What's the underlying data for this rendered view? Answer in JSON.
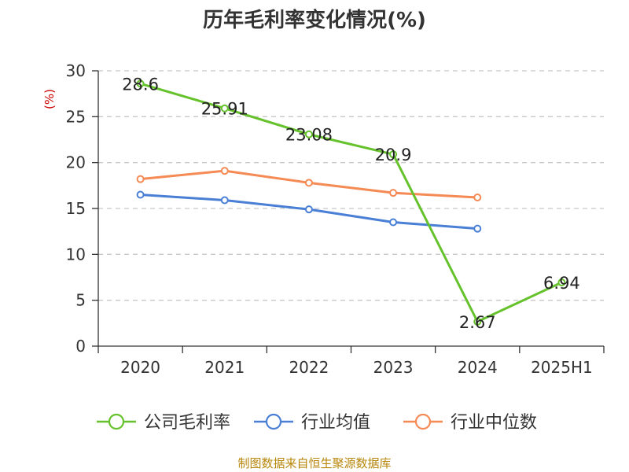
{
  "chart_data": {
    "type": "line",
    "title": "历年毛利率变化情况(%)",
    "ylabel": "(%)",
    "ylim": [
      0,
      30
    ],
    "yticks": [
      0,
      5,
      10,
      15,
      20,
      25,
      30
    ],
    "categories": [
      "2020",
      "2021",
      "2022",
      "2023",
      "2024",
      "2025H1"
    ],
    "grid": true,
    "legend_position": "bottom",
    "series": [
      {
        "name": "公司毛利率",
        "color": "#66c22c",
        "values": [
          28.6,
          25.91,
          23.08,
          20.9,
          2.67,
          6.94
        ],
        "labels": [
          "28.6",
          "25.91",
          "23.08",
          "20.9",
          "2.67",
          "6.94"
        ]
      },
      {
        "name": "行业均值",
        "color": "#4a7fd6",
        "values": [
          16.5,
          15.9,
          14.9,
          13.5,
          12.8,
          null
        ]
      },
      {
        "name": "行业中位数",
        "color": "#f58a55",
        "values": [
          18.2,
          19.1,
          17.8,
          16.7,
          16.2,
          null
        ]
      }
    ]
  },
  "footer": {
    "source": "制图数据来自恒生聚源数据库"
  }
}
